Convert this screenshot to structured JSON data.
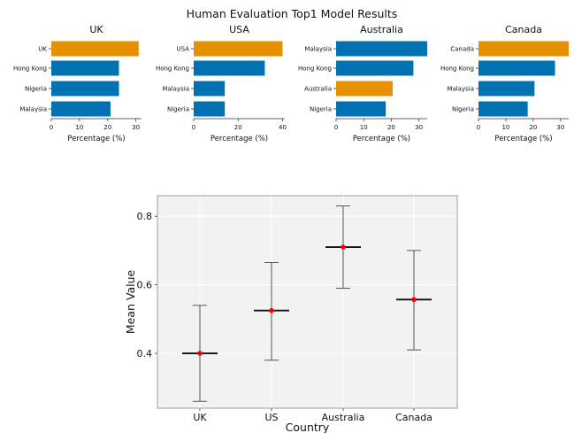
{
  "figure": {
    "title": "Human Evaluation Top1 Model Results"
  },
  "chart_data": [
    {
      "type": "bar",
      "orientation": "horizontal",
      "title": "UK",
      "xlabel": "Percentage (%)",
      "xlim": [
        0,
        32
      ],
      "xticks": [
        0,
        10,
        20,
        30
      ],
      "categories": [
        "UK",
        "Hong Kong",
        "Nigeria",
        "Malaysia"
      ],
      "values": [
        31,
        24,
        24,
        21
      ],
      "highlight": "UK"
    },
    {
      "type": "bar",
      "orientation": "horizontal",
      "title": "USA",
      "xlabel": "Percentage (%)",
      "xlim": [
        0,
        41
      ],
      "xticks": [
        0,
        20,
        40
      ],
      "categories": [
        "USA",
        "Hong Kong",
        "Malaysia",
        "Nigeria"
      ],
      "values": [
        40,
        32,
        14,
        14
      ],
      "highlight": "USA"
    },
    {
      "type": "bar",
      "orientation": "horizontal",
      "title": "Australia",
      "xlabel": "Percentage (%)",
      "xlim": [
        0,
        33
      ],
      "xticks": [
        0,
        10,
        20,
        30
      ],
      "categories": [
        "Malaysia",
        "Hong Kong",
        "Australia",
        "Nigeria"
      ],
      "values": [
        33,
        28,
        20.5,
        18
      ],
      "highlight": "Australia"
    },
    {
      "type": "bar",
      "orientation": "horizontal",
      "title": "Canada",
      "xlabel": "Percentage (%)",
      "xlim": [
        0,
        33
      ],
      "xticks": [
        0,
        10,
        20,
        30
      ],
      "categories": [
        "Canada",
        "Hong Kong",
        "Malaysia",
        "Nigeria"
      ],
      "values": [
        33,
        28,
        20.5,
        18
      ],
      "highlight": "Canada"
    },
    {
      "type": "errorbar",
      "xlabel": "Country",
      "ylabel": "Mean Value",
      "categories": [
        "UK",
        "US",
        "Australia",
        "Canada"
      ],
      "means": [
        0.4,
        0.525,
        0.71,
        0.557
      ],
      "lower": [
        0.26,
        0.38,
        0.59,
        0.41
      ],
      "upper": [
        0.54,
        0.665,
        0.83,
        0.7
      ],
      "ylim": [
        0.24,
        0.86
      ],
      "yticks": [
        0.4,
        0.6,
        0.8
      ],
      "grid": true
    }
  ],
  "colors": {
    "highlight": "#E69100",
    "other": "#0072B2",
    "mean_point": "#ff0000",
    "panel_bg": "#f2f2f2",
    "grid": "#ffffff"
  }
}
